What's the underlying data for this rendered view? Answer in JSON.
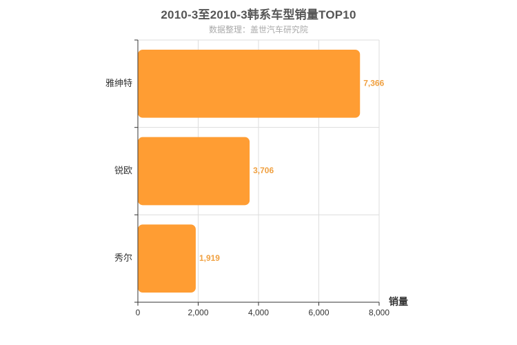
{
  "header": {
    "title": "2010-3至2010-3韩系车型销量TOP10",
    "subtitle": "数据整理：盖世汽车研究院"
  },
  "colors": {
    "bar": "#ff9d33",
    "value_label": "#f0a040",
    "grid": "#dddddd",
    "axis": "#333333"
  },
  "chart_data": {
    "type": "bar",
    "orientation": "horizontal",
    "title": "2010-3至2010-3韩系车型销量TOP10",
    "subtitle": "数据整理：盖世汽车研究院",
    "categories": [
      "雅绅特",
      "锐欧",
      "秀尔"
    ],
    "values": [
      7366,
      3706,
      1919
    ],
    "value_labels": [
      "7,366",
      "3,706",
      "1,919"
    ],
    "xlabel": "销量",
    "ylabel": "",
    "xlim": [
      0,
      8000
    ],
    "x_ticks": [
      0,
      2000,
      4000,
      6000,
      8000
    ],
    "x_tick_labels": [
      "0",
      "2,000",
      "4,000",
      "6,000",
      "8,000"
    ],
    "grid": true,
    "legend": "none"
  }
}
